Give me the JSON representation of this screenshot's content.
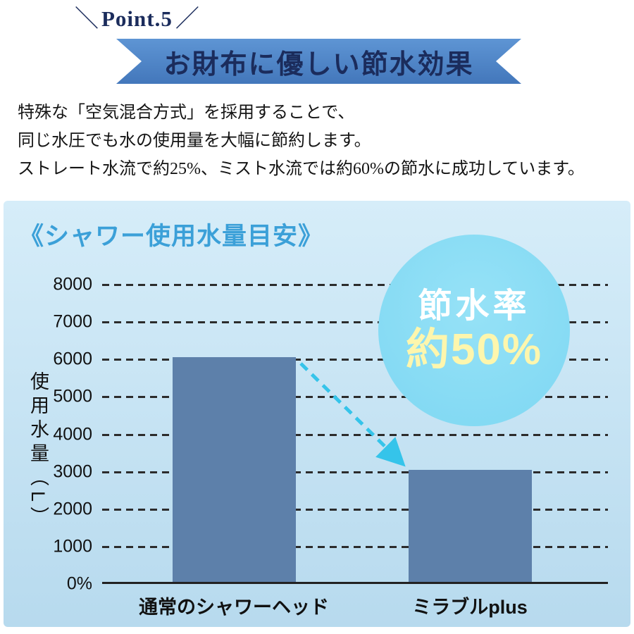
{
  "header": {
    "slash_left": "＼",
    "point_label": "Point.5",
    "slash_right": "／",
    "title": "お財布に優しい節水効果"
  },
  "intro": {
    "line1": "特殊な「空気混合方式」を採用することで、",
    "line2": "同じ水圧でも水の使用量を大幅に節約します。",
    "line3": "ストレート水流で約25%、ミスト水流では約60%の節水に成功しています。"
  },
  "badge": {
    "line1": "節水率",
    "line2": "約50%"
  },
  "chart_data": {
    "type": "bar",
    "title": "《シャワー使用水量目安》",
    "categories": [
      "通常のシャワーヘッド",
      "ミラブルplus"
    ],
    "values": [
      6000,
      3000
    ],
    "ylabel": "使用水量（L）",
    "xlabel": "",
    "ylim": [
      0,
      8000
    ],
    "ytick_step": 1000,
    "ytick_labels": [
      "8000",
      "7000",
      "6000",
      "5000",
      "4000",
      "3000",
      "2000",
      "1000",
      "0%"
    ],
    "grid": "dashed horizontal",
    "legend": "none",
    "annotation": "節水率 約50%"
  },
  "colors": {
    "navy": "#1b2c5c",
    "ribbon_top": "#5e95d4",
    "ribbon_bottom": "#4377bb",
    "panel_top": "#d6edf9",
    "panel_bottom": "#b7daee",
    "title_blue": "#3ba0d8",
    "bar": "#5d80aa",
    "badge_circle": "#7ed7f2",
    "badge_circle_light": "#96e2f7",
    "badge_text1": "#ffffff",
    "badge_text2": "#fdf6ad",
    "arrow": "#35c4ea"
  }
}
